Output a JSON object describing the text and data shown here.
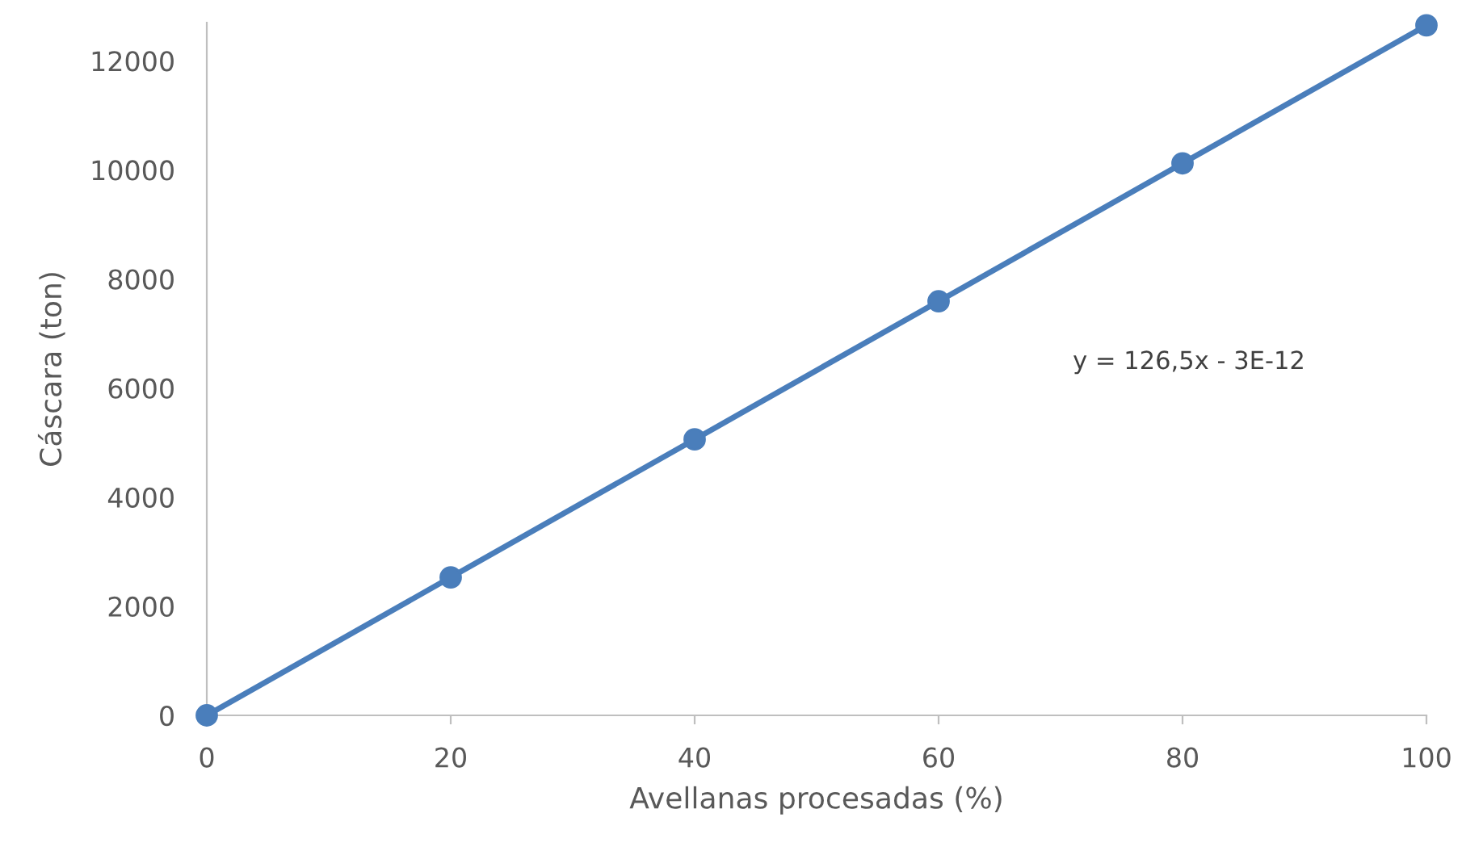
{
  "chart_data": {
    "type": "line",
    "xlabel": "Avellanas procesadas (%)",
    "ylabel": "Cáscara (ton)",
    "x": [
      0,
      20,
      40,
      60,
      80,
      100
    ],
    "series": [
      {
        "color": "#4a7ebb",
        "values": [
          0,
          2530,
          5060,
          7590,
          10120,
          12650
        ]
      }
    ],
    "xlim": [
      0,
      100
    ],
    "xticks": [
      0,
      20,
      40,
      60,
      80,
      100
    ],
    "ylim": [
      0,
      12700
    ],
    "yticks": [
      0,
      2000,
      4000,
      6000,
      8000,
      10000,
      12000
    ],
    "marker": "circle",
    "line_style": "solid",
    "grid": false,
    "legend": false,
    "annotations": [
      "y = 126,5x - 3E-12"
    ]
  }
}
